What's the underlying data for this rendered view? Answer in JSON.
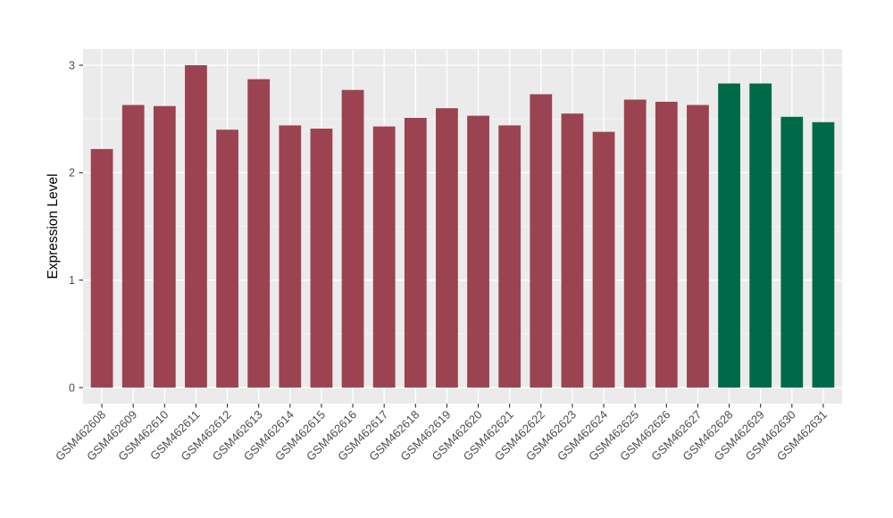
{
  "figure": {
    "background": "#FFFFFF",
    "panel_background": "#EBEBEB",
    "grid_major_color": "#FFFFFF",
    "grid_minor_color": "#F6F6F6",
    "tick_mark_color": "#333333",
    "axis_text_color": "#4D4D4D",
    "axis_title_color": "#000000"
  },
  "chart_data": {
    "type": "bar",
    "title": "",
    "xlabel": "",
    "ylabel": "Expression Level",
    "ylim": [
      -0.15,
      3.15
    ],
    "yticks": [
      0,
      1,
      2,
      3
    ],
    "yticks_minor": [
      0.5,
      1.5,
      2.5
    ],
    "grid": true,
    "legend": "none",
    "x_label_rotation_deg": 45,
    "categories": [
      "GSM462608",
      "GSM462609",
      "GSM462610",
      "GSM462611",
      "GSM462612",
      "GSM462613",
      "GSM462614",
      "GSM462615",
      "GSM462616",
      "GSM462617",
      "GSM462618",
      "GSM462619",
      "GSM462620",
      "GSM462621",
      "GSM462622",
      "GSM462623",
      "GSM462624",
      "GSM462625",
      "GSM462626",
      "GSM462627",
      "GSM462628",
      "GSM462629",
      "GSM462630",
      "GSM462631"
    ],
    "values": [
      2.22,
      2.63,
      2.62,
      3.0,
      2.4,
      2.87,
      2.44,
      2.41,
      2.77,
      2.43,
      2.51,
      2.6,
      2.53,
      2.44,
      2.73,
      2.55,
      2.38,
      2.68,
      2.66,
      2.63,
      2.83,
      2.83,
      2.52,
      2.47
    ],
    "bar_groups": [
      "red",
      "red",
      "red",
      "red",
      "red",
      "red",
      "red",
      "red",
      "red",
      "red",
      "red",
      "red",
      "red",
      "red",
      "red",
      "red",
      "red",
      "red",
      "red",
      "red",
      "green",
      "green",
      "green",
      "green"
    ],
    "group_colors": {
      "red": "#9B4351",
      "green": "#006A48"
    }
  }
}
